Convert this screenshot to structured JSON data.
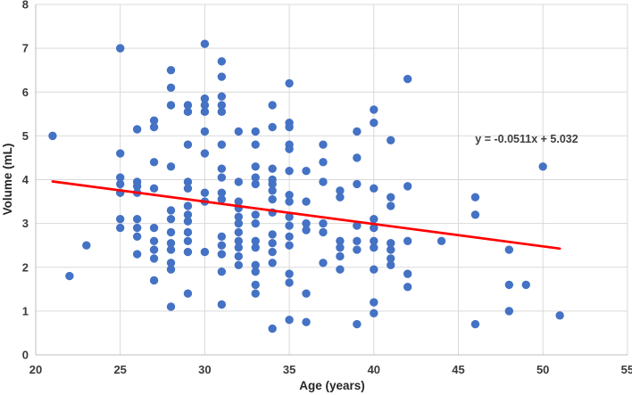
{
  "chart_data": {
    "type": "scatter",
    "title": "",
    "xlabel": "Age (years)",
    "ylabel": "Volume (mL)",
    "xlim": [
      20,
      55
    ],
    "ylim": [
      0,
      8
    ],
    "xticks": [
      20,
      25,
      30,
      35,
      40,
      45,
      50,
      55
    ],
    "yticks": [
      0,
      1,
      2,
      3,
      4,
      5,
      6,
      7,
      8
    ],
    "grid": true,
    "legend": "none",
    "point_color": "#4472c4",
    "grid_color": "#d9d9d9",
    "axis_line_color": "#bfbfbf",
    "label_color": "#3a3a3a",
    "points": [
      [
        21,
        5.0
      ],
      [
        22,
        1.8
      ],
      [
        23,
        2.5
      ],
      [
        25,
        7.0
      ],
      [
        25,
        4.6
      ],
      [
        25,
        4.05
      ],
      [
        25,
        3.9
      ],
      [
        25,
        3.7
      ],
      [
        25,
        3.1
      ],
      [
        25,
        2.9
      ],
      [
        26,
        5.15
      ],
      [
        26,
        3.95
      ],
      [
        26,
        3.85
      ],
      [
        26,
        3.7
      ],
      [
        26,
        3.1
      ],
      [
        26,
        2.9
      ],
      [
        26,
        2.7
      ],
      [
        26,
        2.3
      ],
      [
        27,
        5.35
      ],
      [
        27,
        5.2
      ],
      [
        27,
        4.4
      ],
      [
        27,
        3.8
      ],
      [
        27,
        2.9
      ],
      [
        27,
        2.6
      ],
      [
        27,
        2.4
      ],
      [
        27,
        2.2
      ],
      [
        27,
        1.7
      ],
      [
        28,
        6.5
      ],
      [
        28,
        6.1
      ],
      [
        28,
        5.7
      ],
      [
        28,
        4.3
      ],
      [
        28,
        3.3
      ],
      [
        28,
        3.1
      ],
      [
        28,
        2.8
      ],
      [
        28,
        2.55
      ],
      [
        28,
        2.4
      ],
      [
        28,
        2.1
      ],
      [
        28,
        1.95
      ],
      [
        28,
        1.1
      ],
      [
        29,
        5.7
      ],
      [
        29,
        5.55
      ],
      [
        29,
        4.8
      ],
      [
        29,
        3.95
      ],
      [
        29,
        3.8
      ],
      [
        29,
        3.4
      ],
      [
        29,
        3.2
      ],
      [
        29,
        3.05
      ],
      [
        29,
        2.8
      ],
      [
        29,
        2.6
      ],
      [
        29,
        2.35
      ],
      [
        29,
        1.4
      ],
      [
        30,
        7.1
      ],
      [
        30,
        5.85
      ],
      [
        30,
        5.7
      ],
      [
        30,
        5.55
      ],
      [
        30,
        5.1
      ],
      [
        30,
        4.6
      ],
      [
        30,
        3.7
      ],
      [
        30,
        3.5
      ],
      [
        30,
        2.35
      ],
      [
        31,
        6.7
      ],
      [
        31,
        6.35
      ],
      [
        31,
        5.9
      ],
      [
        31,
        5.7
      ],
      [
        31,
        5.55
      ],
      [
        31,
        4.8
      ],
      [
        31,
        4.25
      ],
      [
        31,
        4.05
      ],
      [
        31,
        3.7
      ],
      [
        31,
        3.55
      ],
      [
        31,
        2.7
      ],
      [
        31,
        2.5
      ],
      [
        31,
        2.3
      ],
      [
        31,
        1.9
      ],
      [
        31,
        1.15
      ],
      [
        32,
        5.1
      ],
      [
        32,
        3.95
      ],
      [
        32,
        3.5
      ],
      [
        32,
        3.35
      ],
      [
        32,
        3.15
      ],
      [
        32,
        3.0
      ],
      [
        32,
        2.8
      ],
      [
        32,
        2.6
      ],
      [
        32,
        2.45
      ],
      [
        32,
        2.25
      ],
      [
        32,
        2.05
      ],
      [
        33,
        5.1
      ],
      [
        33,
        4.8
      ],
      [
        33,
        4.3
      ],
      [
        33,
        4.05
      ],
      [
        33,
        3.9
      ],
      [
        33,
        3.2
      ],
      [
        33,
        3.0
      ],
      [
        33,
        2.6
      ],
      [
        33,
        2.45
      ],
      [
        33,
        2.05
      ],
      [
        33,
        1.9
      ],
      [
        33,
        1.6
      ],
      [
        33,
        1.4
      ],
      [
        34,
        5.7
      ],
      [
        34,
        5.2
      ],
      [
        34,
        4.25
      ],
      [
        34,
        4.0
      ],
      [
        34,
        3.9
      ],
      [
        34,
        3.75
      ],
      [
        34,
        3.55
      ],
      [
        34,
        3.25
      ],
      [
        34,
        2.75
      ],
      [
        34,
        2.55
      ],
      [
        34,
        2.35
      ],
      [
        34,
        2.1
      ],
      [
        34,
        0.6
      ],
      [
        35,
        6.2
      ],
      [
        35,
        5.3
      ],
      [
        35,
        5.2
      ],
      [
        35,
        4.8
      ],
      [
        35,
        4.7
      ],
      [
        35,
        4.2
      ],
      [
        35,
        3.65
      ],
      [
        35,
        3.5
      ],
      [
        35,
        3.15
      ],
      [
        35,
        2.95
      ],
      [
        35,
        2.7
      ],
      [
        35,
        2.5
      ],
      [
        35,
        1.85
      ],
      [
        35,
        1.65
      ],
      [
        35,
        0.8
      ],
      [
        36,
        4.2
      ],
      [
        36,
        3.5
      ],
      [
        36,
        3.0
      ],
      [
        36,
        2.85
      ],
      [
        36,
        1.4
      ],
      [
        36,
        0.75
      ],
      [
        37,
        4.8
      ],
      [
        37,
        4.4
      ],
      [
        37,
        3.95
      ],
      [
        37,
        3.0
      ],
      [
        37,
        2.8
      ],
      [
        37,
        2.1
      ],
      [
        38,
        3.75
      ],
      [
        38,
        3.6
      ],
      [
        38,
        2.6
      ],
      [
        38,
        2.45
      ],
      [
        38,
        2.25
      ],
      [
        38,
        1.95
      ],
      [
        39,
        5.1
      ],
      [
        39,
        4.5
      ],
      [
        39,
        3.9
      ],
      [
        39,
        2.95
      ],
      [
        39,
        2.6
      ],
      [
        39,
        2.4
      ],
      [
        39,
        0.7
      ],
      [
        40,
        5.6
      ],
      [
        40,
        5.3
      ],
      [
        40,
        3.8
      ],
      [
        40,
        3.1
      ],
      [
        40,
        2.9
      ],
      [
        40,
        2.6
      ],
      [
        40,
        2.45
      ],
      [
        40,
        1.95
      ],
      [
        40,
        1.2
      ],
      [
        40,
        0.95
      ],
      [
        41,
        4.9
      ],
      [
        41,
        3.6
      ],
      [
        41,
        3.4
      ],
      [
        41,
        2.55
      ],
      [
        41,
        2.4
      ],
      [
        41,
        2.2
      ],
      [
        41,
        2.05
      ],
      [
        42,
        6.3
      ],
      [
        42,
        3.85
      ],
      [
        42,
        2.6
      ],
      [
        42,
        1.85
      ],
      [
        42,
        1.55
      ],
      [
        44,
        2.6
      ],
      [
        46,
        3.6
      ],
      [
        46,
        3.2
      ],
      [
        46,
        0.7
      ],
      [
        48,
        2.4
      ],
      [
        48,
        1.6
      ],
      [
        48,
        1.0
      ],
      [
        49,
        1.6
      ],
      [
        50,
        4.3
      ],
      [
        51,
        0.9
      ]
    ],
    "trendline": {
      "equation_label": "y = -0.0511x + 5.032",
      "slope": -0.0511,
      "intercept": 5.032,
      "x_start": 21,
      "x_end": 51,
      "color": "#ff0000"
    }
  }
}
